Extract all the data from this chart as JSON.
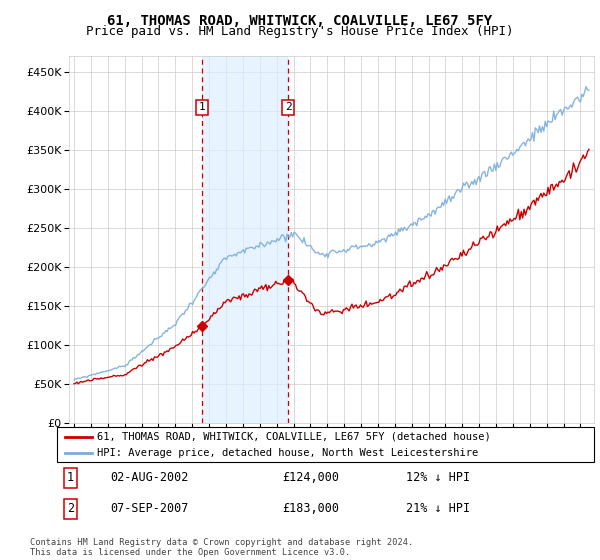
{
  "title": "61, THOMAS ROAD, WHITWICK, COALVILLE, LE67 5FY",
  "subtitle": "Price paid vs. HM Land Registry's House Price Index (HPI)",
  "ylim": [
    0,
    470000
  ],
  "yticks": [
    0,
    50000,
    100000,
    150000,
    200000,
    250000,
    300000,
    350000,
    400000,
    450000
  ],
  "ytick_labels": [
    "£0",
    "£50K",
    "£100K",
    "£150K",
    "£200K",
    "£250K",
    "£300K",
    "£350K",
    "£400K",
    "£450K"
  ],
  "sale1_date_num": 2002.58,
  "sale1_price": 124000,
  "sale2_date_num": 2007.68,
  "sale2_price": 183000,
  "sale1_date_str": "02-AUG-2002",
  "sale2_date_str": "07-SEP-2007",
  "sale1_pct": "12% ↓ HPI",
  "sale2_pct": "21% ↓ HPI",
  "sale1_price_str": "£124,000",
  "sale2_price_str": "£183,000",
  "legend_line1": "61, THOMAS ROAD, WHITWICK, COALVILLE, LE67 5FY (detached house)",
  "legend_line2": "HPI: Average price, detached house, North West Leicestershire",
  "footnote": "Contains HM Land Registry data © Crown copyright and database right 2024.\nThis data is licensed under the Open Government Licence v3.0.",
  "hpi_color": "#7aaddc",
  "price_color": "#cc0000",
  "shade_color": "#ddeeff",
  "vline_color": "#cc0000",
  "grid_color": "#cccccc",
  "background_color": "#ffffff",
  "title_fontsize": 10,
  "subtitle_fontsize": 9,
  "t_start": 1995.0,
  "t_end": 2025.5,
  "xlim_left": 1994.7,
  "xlim_right": 2025.8
}
